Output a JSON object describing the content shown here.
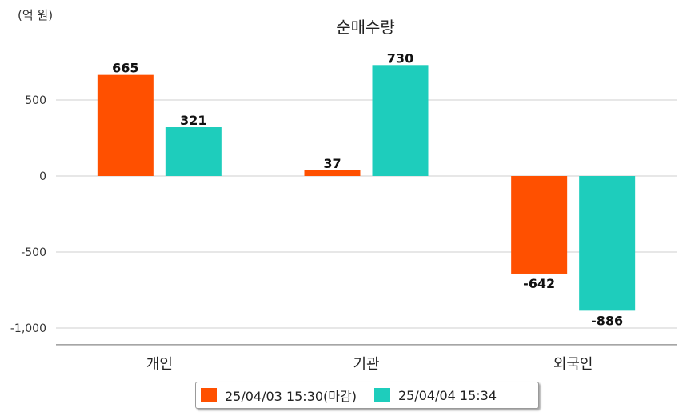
{
  "chart_data": {
    "type": "bar",
    "title": "순매수량",
    "unit_label": "(억 원)",
    "categories": [
      "개인",
      "기관",
      "외국인"
    ],
    "series": [
      {
        "name": "25/04/03 15:30(마감)",
        "values": [
          665,
          37,
          -642
        ],
        "color": "#ff5000"
      },
      {
        "name": "25/04/04 15:34",
        "values": [
          321,
          730,
          -886
        ],
        "color": "#1ecdbc"
      }
    ],
    "yticks": [
      500,
      0,
      -500,
      -1000
    ],
    "ytick_labels": [
      "500",
      "0",
      "-500",
      "-1,000"
    ],
    "ylim": [
      -1110,
      870
    ],
    "grid": true,
    "legend_position": "bottom"
  }
}
